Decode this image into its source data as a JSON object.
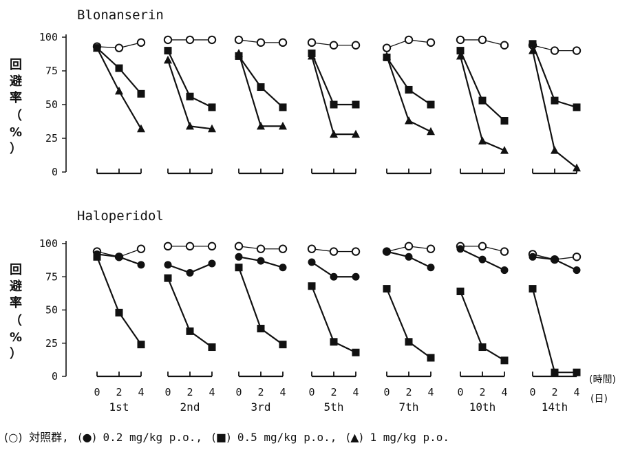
{
  "legend": {
    "items": [
      {
        "symbol": "(○)",
        "text": "対照群,"
      },
      {
        "symbol": "(●)",
        "text": "0.2 mg/kg p.o.,"
      },
      {
        "symbol": "(■)",
        "text": "0.5 mg/kg p.o.,"
      },
      {
        "symbol": "(▲)",
        "text": "1 mg/kg p.o."
      }
    ]
  },
  "x_unit": {
    "line1": "(時間)",
    "line2": "(日)"
  },
  "chart_data": [
    {
      "type": "line",
      "title": "Blonanserin",
      "ylabel": "回避率（%）",
      "yticks": [
        0,
        25,
        50,
        75,
        100
      ],
      "ylim": [
        0,
        100
      ],
      "x_ticks": [
        "0",
        "2",
        "4"
      ],
      "days": [
        "1st",
        "2nd",
        "3rd",
        "5th",
        "7th",
        "10th",
        "14th"
      ],
      "series": [
        {
          "marker": "open-circle",
          "values": [
            [
              93,
              92,
              96
            ],
            [
              98,
              98,
              98
            ],
            [
              98,
              96,
              96
            ],
            [
              96,
              94,
              94
            ],
            [
              92,
              98,
              96
            ],
            [
              98,
              98,
              94
            ],
            [
              94,
              90,
              90
            ]
          ]
        },
        {
          "marker": "square",
          "values": [
            [
              92,
              77,
              58
            ],
            [
              90,
              56,
              48
            ],
            [
              86,
              63,
              48
            ],
            [
              88,
              50,
              50
            ],
            [
              85,
              61,
              50
            ],
            [
              90,
              53,
              38
            ],
            [
              95,
              53,
              48
            ]
          ]
        },
        {
          "marker": "triangle",
          "values": [
            [
              92,
              60,
              32
            ],
            [
              83,
              34,
              32
            ],
            [
              88,
              34,
              34
            ],
            [
              86,
              28,
              28
            ],
            [
              86,
              38,
              30
            ],
            [
              86,
              23,
              16
            ],
            [
              90,
              16,
              3
            ]
          ]
        }
      ]
    },
    {
      "type": "line",
      "title": "Haloperidol",
      "ylabel": "回避率（%）",
      "yticks": [
        0,
        25,
        50,
        75,
        100
      ],
      "ylim": [
        0,
        100
      ],
      "x_ticks": [
        "0",
        "2",
        "4"
      ],
      "days": [
        "1st",
        "2nd",
        "3rd",
        "5th",
        "7th",
        "10th",
        "14th"
      ],
      "series": [
        {
          "marker": "open-circle",
          "values": [
            [
              94,
              90,
              96
            ],
            [
              98,
              98,
              98
            ],
            [
              98,
              96,
              96
            ],
            [
              96,
              94,
              94
            ],
            [
              94,
              98,
              96
            ],
            [
              98,
              98,
              94
            ],
            [
              92,
              88,
              90
            ]
          ]
        },
        {
          "marker": "filled-circle",
          "values": [
            [
              92,
              90,
              84
            ],
            [
              84,
              78,
              85
            ],
            [
              90,
              87,
              82
            ],
            [
              86,
              75,
              75
            ],
            [
              94,
              90,
              82
            ],
            [
              96,
              88,
              80
            ],
            [
              90,
              88,
              80
            ]
          ]
        },
        {
          "marker": "square",
          "values": [
            [
              90,
              48,
              24
            ],
            [
              74,
              34,
              22
            ],
            [
              82,
              36,
              24
            ],
            [
              68,
              26,
              18
            ],
            [
              66,
              26,
              14
            ],
            [
              64,
              22,
              12
            ],
            [
              66,
              3,
              3
            ]
          ]
        }
      ]
    }
  ]
}
